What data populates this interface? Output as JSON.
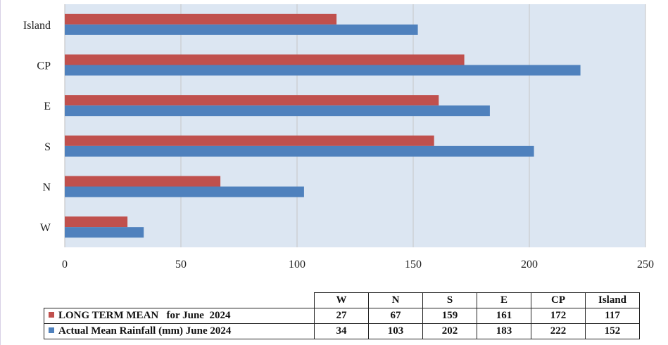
{
  "chart_data": {
    "type": "bar",
    "orientation": "horizontal",
    "categories": [
      "W",
      "N",
      "S",
      "E",
      "CP",
      "Island"
    ],
    "series": [
      {
        "name": "LONG TERM MEAN   for June  2024",
        "color": "#c0504d",
        "values": [
          27,
          67,
          159,
          161,
          172,
          117
        ]
      },
      {
        "name": "Actual Mean Rainfall (mm) June 2024",
        "color": "#4f81bd",
        "values": [
          34,
          103,
          202,
          183,
          222,
          152
        ]
      }
    ],
    "xlim": [
      0,
      250
    ],
    "x_ticks": [
      0,
      50,
      100,
      150,
      200,
      250
    ],
    "grid": true,
    "plot_background": "#dce6f2",
    "legend": "data-table-below"
  },
  "table": {
    "columns": [
      "W",
      "N",
      "S",
      "E",
      "CP",
      "Island"
    ],
    "rows": [
      {
        "label": "LONG TERM MEAN   for June  2024",
        "color": "#c0504d",
        "values": [
          "27",
          "67",
          "159",
          "161",
          "172",
          "117"
        ]
      },
      {
        "label": "Actual Mean Rainfall (mm) June 2024",
        "color": "#4f81bd",
        "values": [
          "34",
          "103",
          "202",
          "183",
          "222",
          "152"
        ]
      }
    ]
  }
}
